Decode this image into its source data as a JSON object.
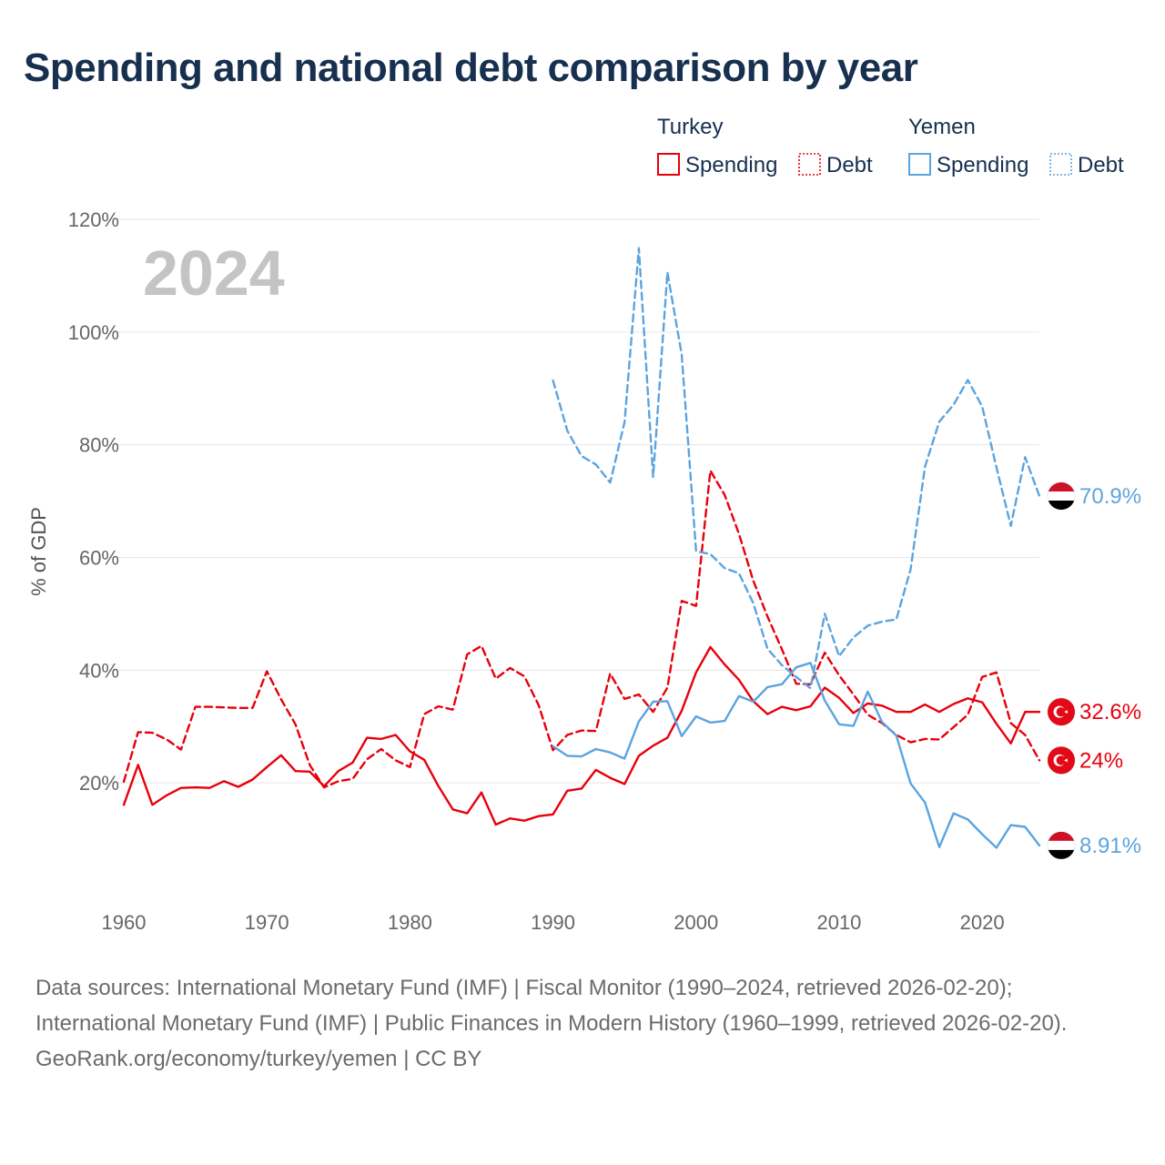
{
  "title": "Spending and national debt comparison by year",
  "colors": {
    "turkey": "#e8000b",
    "yemen": "#5ba4e0",
    "grid": "#e6e6e6",
    "title": "#17304f"
  },
  "legend": {
    "groups": [
      {
        "country": "Turkey",
        "color": "#e8000b",
        "items": [
          {
            "label": "Spending",
            "style": "solid"
          },
          {
            "label": "Debt",
            "style": "dotted"
          }
        ]
      },
      {
        "country": "Yemen",
        "color": "#5ba4e0",
        "items": [
          {
            "label": "Spending",
            "style": "solid"
          },
          {
            "label": "Debt",
            "style": "dotted"
          }
        ]
      }
    ]
  },
  "chart_data": {
    "type": "line",
    "title": "Spending and national debt comparison by year",
    "year_label": "2024",
    "xlabel": "",
    "ylabel": "% of GDP",
    "xlim": [
      1960,
      2024
    ],
    "ylim": [
      0,
      120
    ],
    "x_ticks": [
      1960,
      1970,
      1980,
      1990,
      2000,
      2010,
      2020
    ],
    "y_ticks": [
      20,
      40,
      60,
      80,
      100,
      120
    ],
    "y_tick_labels": [
      "20%",
      "40%",
      "60%",
      "80%",
      "100%",
      "120%"
    ],
    "grid": true,
    "series": [
      {
        "name": "Turkey Spending",
        "country": "Turkey",
        "metric": "Spending",
        "style": "solid",
        "color": "#e8000b",
        "start_year": 1960,
        "end_label": "32.6%",
        "end_flag": "Turkey",
        "values": [
          16.1,
          23.2,
          16.1,
          17.8,
          19.1,
          19.2,
          19.1,
          20.3,
          19.3,
          20.6,
          22.8,
          24.9,
          22.1,
          22.0,
          19.4,
          22.1,
          23.6,
          28.0,
          27.8,
          28.5,
          25.6,
          24.1,
          19.4,
          15.3,
          14.6,
          18.3,
          12.6,
          13.7,
          13.3,
          14.1,
          14.4,
          18.6,
          19.0,
          22.3,
          20.9,
          19.8,
          24.8,
          26.6,
          28.0,
          32.8,
          39.6,
          44.1,
          41.0,
          38.3,
          34.5,
          32.2,
          33.5,
          32.9,
          33.6,
          36.9,
          35.1,
          32.4,
          34.1,
          33.7,
          32.6,
          32.6,
          33.9,
          32.6,
          34.0,
          35.0,
          34.3,
          30.5,
          27.0,
          32.6,
          32.6
        ]
      },
      {
        "name": "Turkey Debt",
        "country": "Turkey",
        "metric": "Debt",
        "style": "dashed",
        "color": "#e8000b",
        "start_year": 1960,
        "end_label": "24%",
        "end_flag": "Turkey",
        "values": [
          20.2,
          29.0,
          28.9,
          27.7,
          25.9,
          33.5,
          33.5,
          33.4,
          33.3,
          33.3,
          39.8,
          34.8,
          30.4,
          23.2,
          19.2,
          20.3,
          20.7,
          24.2,
          26.0,
          24.0,
          22.8,
          32.2,
          33.6,
          33.0,
          42.8,
          44.3,
          38.5,
          40.4,
          38.9,
          33.8,
          25.8,
          28.5,
          29.3,
          29.2,
          39.4,
          34.9,
          35.7,
          32.6,
          36.9,
          52.3,
          51.4,
          75.4,
          71.1,
          64.2,
          55.9,
          49.5,
          43.7,
          37.6,
          37.5,
          43.1,
          39.1,
          35.7,
          32.1,
          30.6,
          28.5,
          27.2,
          27.8,
          27.7,
          29.9,
          32.1,
          38.8,
          39.6,
          30.6,
          28.5,
          24.0
        ]
      },
      {
        "name": "Yemen Spending",
        "country": "Yemen",
        "metric": "Spending",
        "style": "solid",
        "color": "#5ba4e0",
        "start_year": 1990,
        "end_label": "8.91%",
        "end_flag": "Yemen",
        "values": [
          26.5,
          24.8,
          24.7,
          26.0,
          25.4,
          24.3,
          30.9,
          34.4,
          34.5,
          28.3,
          31.8,
          30.7,
          31.0,
          35.4,
          34.4,
          37.0,
          37.5,
          40.5,
          41.3,
          34.6,
          30.4,
          30.1,
          36.2,
          30.8,
          28.4,
          19.9,
          16.5,
          8.6,
          14.6,
          13.5,
          10.9,
          8.5,
          12.5,
          12.2,
          8.9
        ]
      },
      {
        "name": "Yemen Debt",
        "country": "Yemen",
        "metric": "Debt",
        "style": "dashed",
        "color": "#5ba4e0",
        "start_year": 1990,
        "end_label": "70.9%",
        "end_flag": "Yemen",
        "values": [
          91.4,
          82.5,
          78.0,
          76.5,
          73.3,
          84.0,
          114.9,
          74.3,
          110.6,
          96.0,
          61.1,
          60.6,
          58.1,
          57.2,
          51.9,
          43.8,
          40.9,
          38.8,
          36.8,
          50.0,
          42.5,
          45.8,
          47.9,
          48.6,
          49.0,
          57.9,
          76.1,
          84.1,
          87.1,
          91.5,
          86.8,
          76.0,
          65.6,
          77.8,
          70.9
        ]
      }
    ]
  },
  "footer": {
    "sources": "Data sources: International Monetary Fund (IMF) | Fiscal Monitor (1990–2024, retrieved 2026-02-20); International Monetary Fund (IMF) | Public Finances in Modern History (1960–1999, retrieved 2026-02-20).",
    "credit": "GeoRank.org/economy/turkey/yemen | CC BY"
  }
}
